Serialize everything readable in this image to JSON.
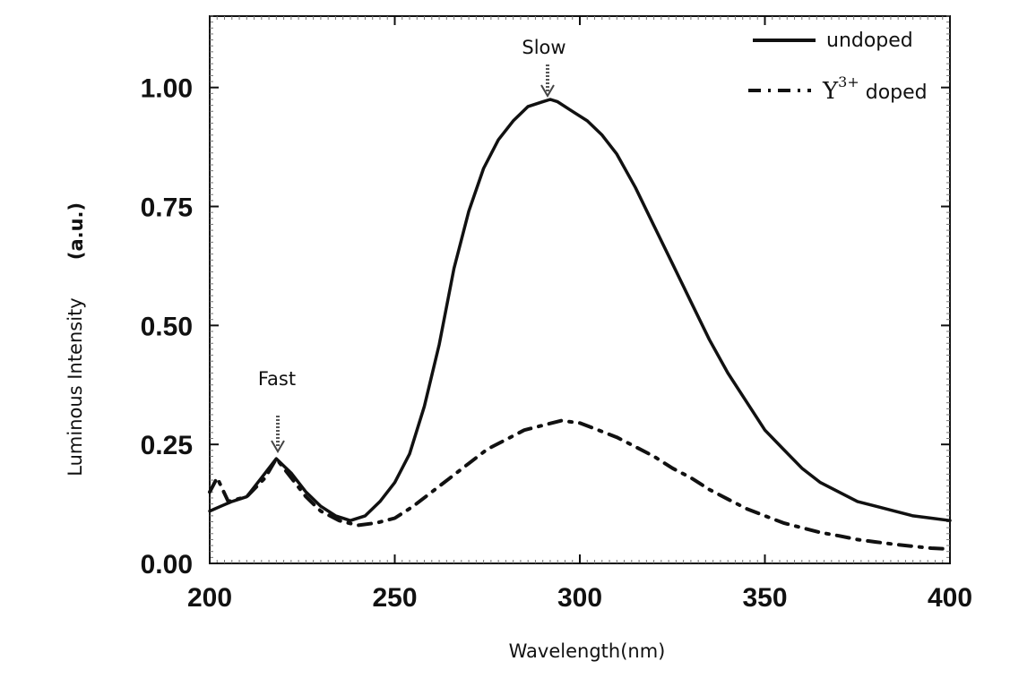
{
  "chart_data": {
    "type": "line",
    "title": "",
    "xlabel": "Wavelength(nm)",
    "ylabel": "Luminous Intensity",
    "ylabel_unit": "(a.u.)",
    "xlim": [
      200,
      400
    ],
    "ylim": [
      0,
      1.15
    ],
    "xticks": [
      200,
      250,
      300,
      350,
      400
    ],
    "xtick_labels": [
      "200",
      "250",
      "300",
      "350",
      "400"
    ],
    "yticks": [
      0,
      0.25,
      0.5,
      0.75,
      1.0
    ],
    "ytick_labels": [
      "0.00",
      "0.25",
      "0.50",
      "0.75",
      "1.00"
    ],
    "grid": false,
    "legend_position": "top-right",
    "series": [
      {
        "name": "undoped",
        "style": "solid",
        "color": "#111111",
        "x": [
          200,
          203,
          206,
          210,
          214,
          218,
          222,
          226,
          230,
          234,
          238,
          242,
          246,
          250,
          254,
          258,
          262,
          266,
          270,
          274,
          278,
          282,
          286,
          290,
          292,
          294,
          298,
          302,
          306,
          310,
          315,
          320,
          325,
          330,
          335,
          340,
          345,
          350,
          355,
          360,
          365,
          370,
          375,
          380,
          385,
          390,
          395,
          400
        ],
        "y": [
          0.11,
          0.12,
          0.13,
          0.14,
          0.18,
          0.22,
          0.19,
          0.15,
          0.12,
          0.1,
          0.09,
          0.1,
          0.13,
          0.17,
          0.23,
          0.33,
          0.46,
          0.62,
          0.74,
          0.83,
          0.89,
          0.93,
          0.96,
          0.97,
          0.975,
          0.97,
          0.95,
          0.93,
          0.9,
          0.86,
          0.79,
          0.71,
          0.63,
          0.55,
          0.47,
          0.4,
          0.34,
          0.28,
          0.24,
          0.2,
          0.17,
          0.15,
          0.13,
          0.12,
          0.11,
          0.1,
          0.095,
          0.09
        ]
      },
      {
        "name": "Y³⁺ doped",
        "style": "dashdot",
        "color": "#111111",
        "x": [
          200,
          202,
          205,
          210,
          215,
          218,
          222,
          226,
          230,
          235,
          240,
          245,
          250,
          255,
          260,
          265,
          270,
          275,
          280,
          285,
          290,
          295,
          300,
          305,
          310,
          315,
          320,
          325,
          330,
          335,
          340,
          345,
          350,
          355,
          360,
          365,
          370,
          375,
          380,
          385,
          390,
          395,
          400
        ],
        "y": [
          0.15,
          0.18,
          0.13,
          0.14,
          0.18,
          0.22,
          0.18,
          0.14,
          0.11,
          0.09,
          0.08,
          0.085,
          0.095,
          0.12,
          0.15,
          0.18,
          0.21,
          0.24,
          0.26,
          0.28,
          0.29,
          0.3,
          0.295,
          0.28,
          0.265,
          0.245,
          0.225,
          0.2,
          0.18,
          0.155,
          0.135,
          0.115,
          0.1,
          0.085,
          0.075,
          0.065,
          0.058,
          0.05,
          0.045,
          0.04,
          0.036,
          0.032,
          0.03
        ]
      }
    ],
    "annotations": [
      {
        "text": "Slow",
        "x": 291,
        "y": 0.975
      },
      {
        "text": "Fast",
        "x": 218,
        "y": 0.22
      }
    ],
    "legend": {
      "entries": [
        {
          "label": "undoped",
          "style": "solid"
        },
        {
          "label_base": "Y",
          "label_sup": "3+",
          "label_rest": " doped",
          "style": "dashdot"
        }
      ]
    }
  }
}
